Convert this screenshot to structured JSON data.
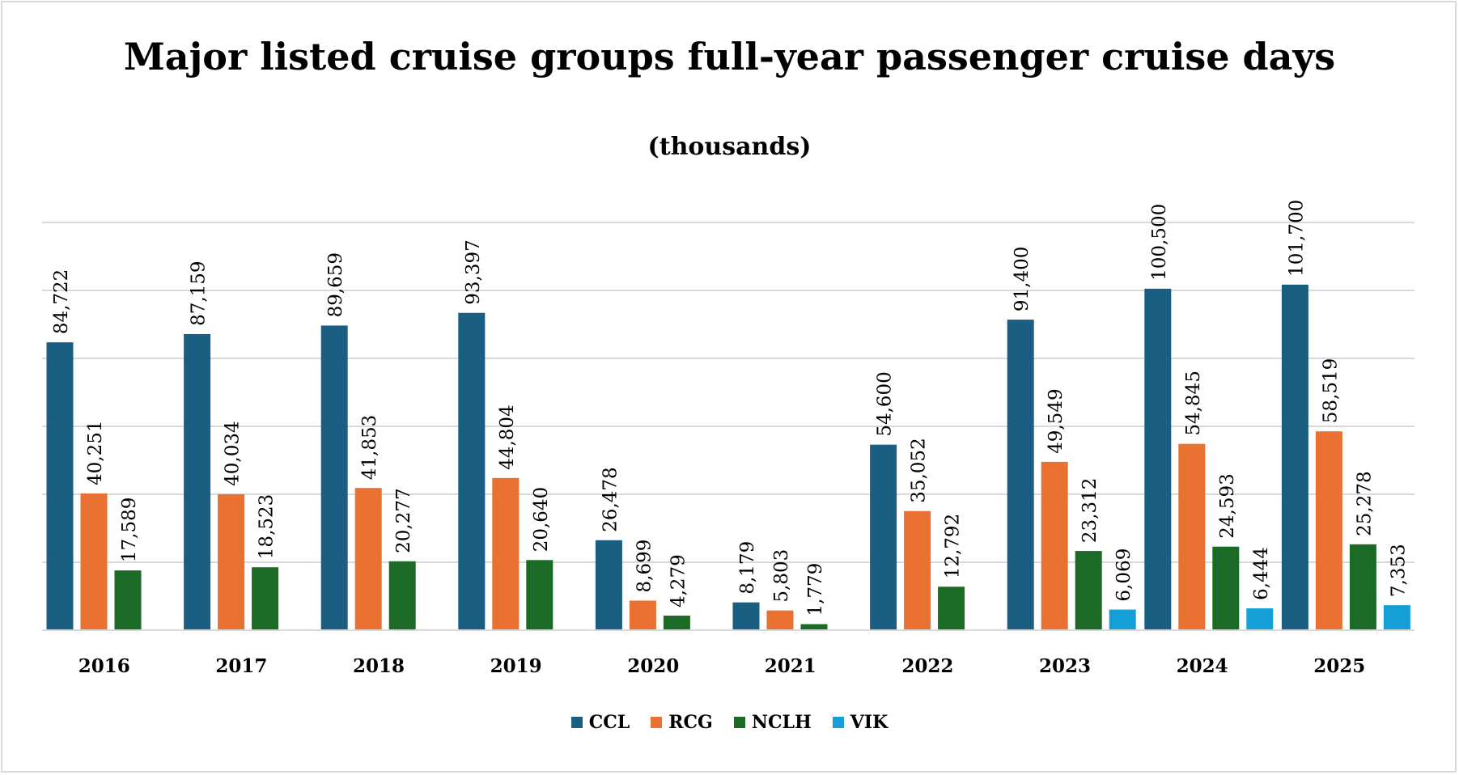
{
  "chart_data": {
    "type": "bar",
    "title": "Major listed cruise groups full-year passenger cruise days",
    "subtitle": "(thousands)",
    "xlabel": "",
    "ylabel": "",
    "ylim": [
      0,
      120000
    ],
    "grid": true,
    "grid_step": 20000,
    "legend_position": "bottom",
    "categories": [
      "2016",
      "2017",
      "2018",
      "2019",
      "2020",
      "2021",
      "2022",
      "2023",
      "2024",
      "2025"
    ],
    "series": [
      {
        "name": "CCL",
        "color": "#1a5f82",
        "values": [
          84722,
          87159,
          89659,
          93397,
          26478,
          8179,
          54600,
          91400,
          100500,
          101700
        ]
      },
      {
        "name": "RCG",
        "color": "#e97132",
        "values": [
          40251,
          40034,
          41853,
          44804,
          8699,
          5803,
          35052,
          49549,
          54845,
          58519
        ]
      },
      {
        "name": "NCLH",
        "color": "#1b6a25",
        "values": [
          17589,
          18523,
          20277,
          20640,
          4279,
          1779,
          12792,
          23312,
          24593,
          25278
        ]
      },
      {
        "name": "VIK",
        "color": "#159fd7",
        "values": [
          null,
          null,
          null,
          null,
          null,
          null,
          null,
          6069,
          6444,
          7353
        ]
      }
    ]
  }
}
